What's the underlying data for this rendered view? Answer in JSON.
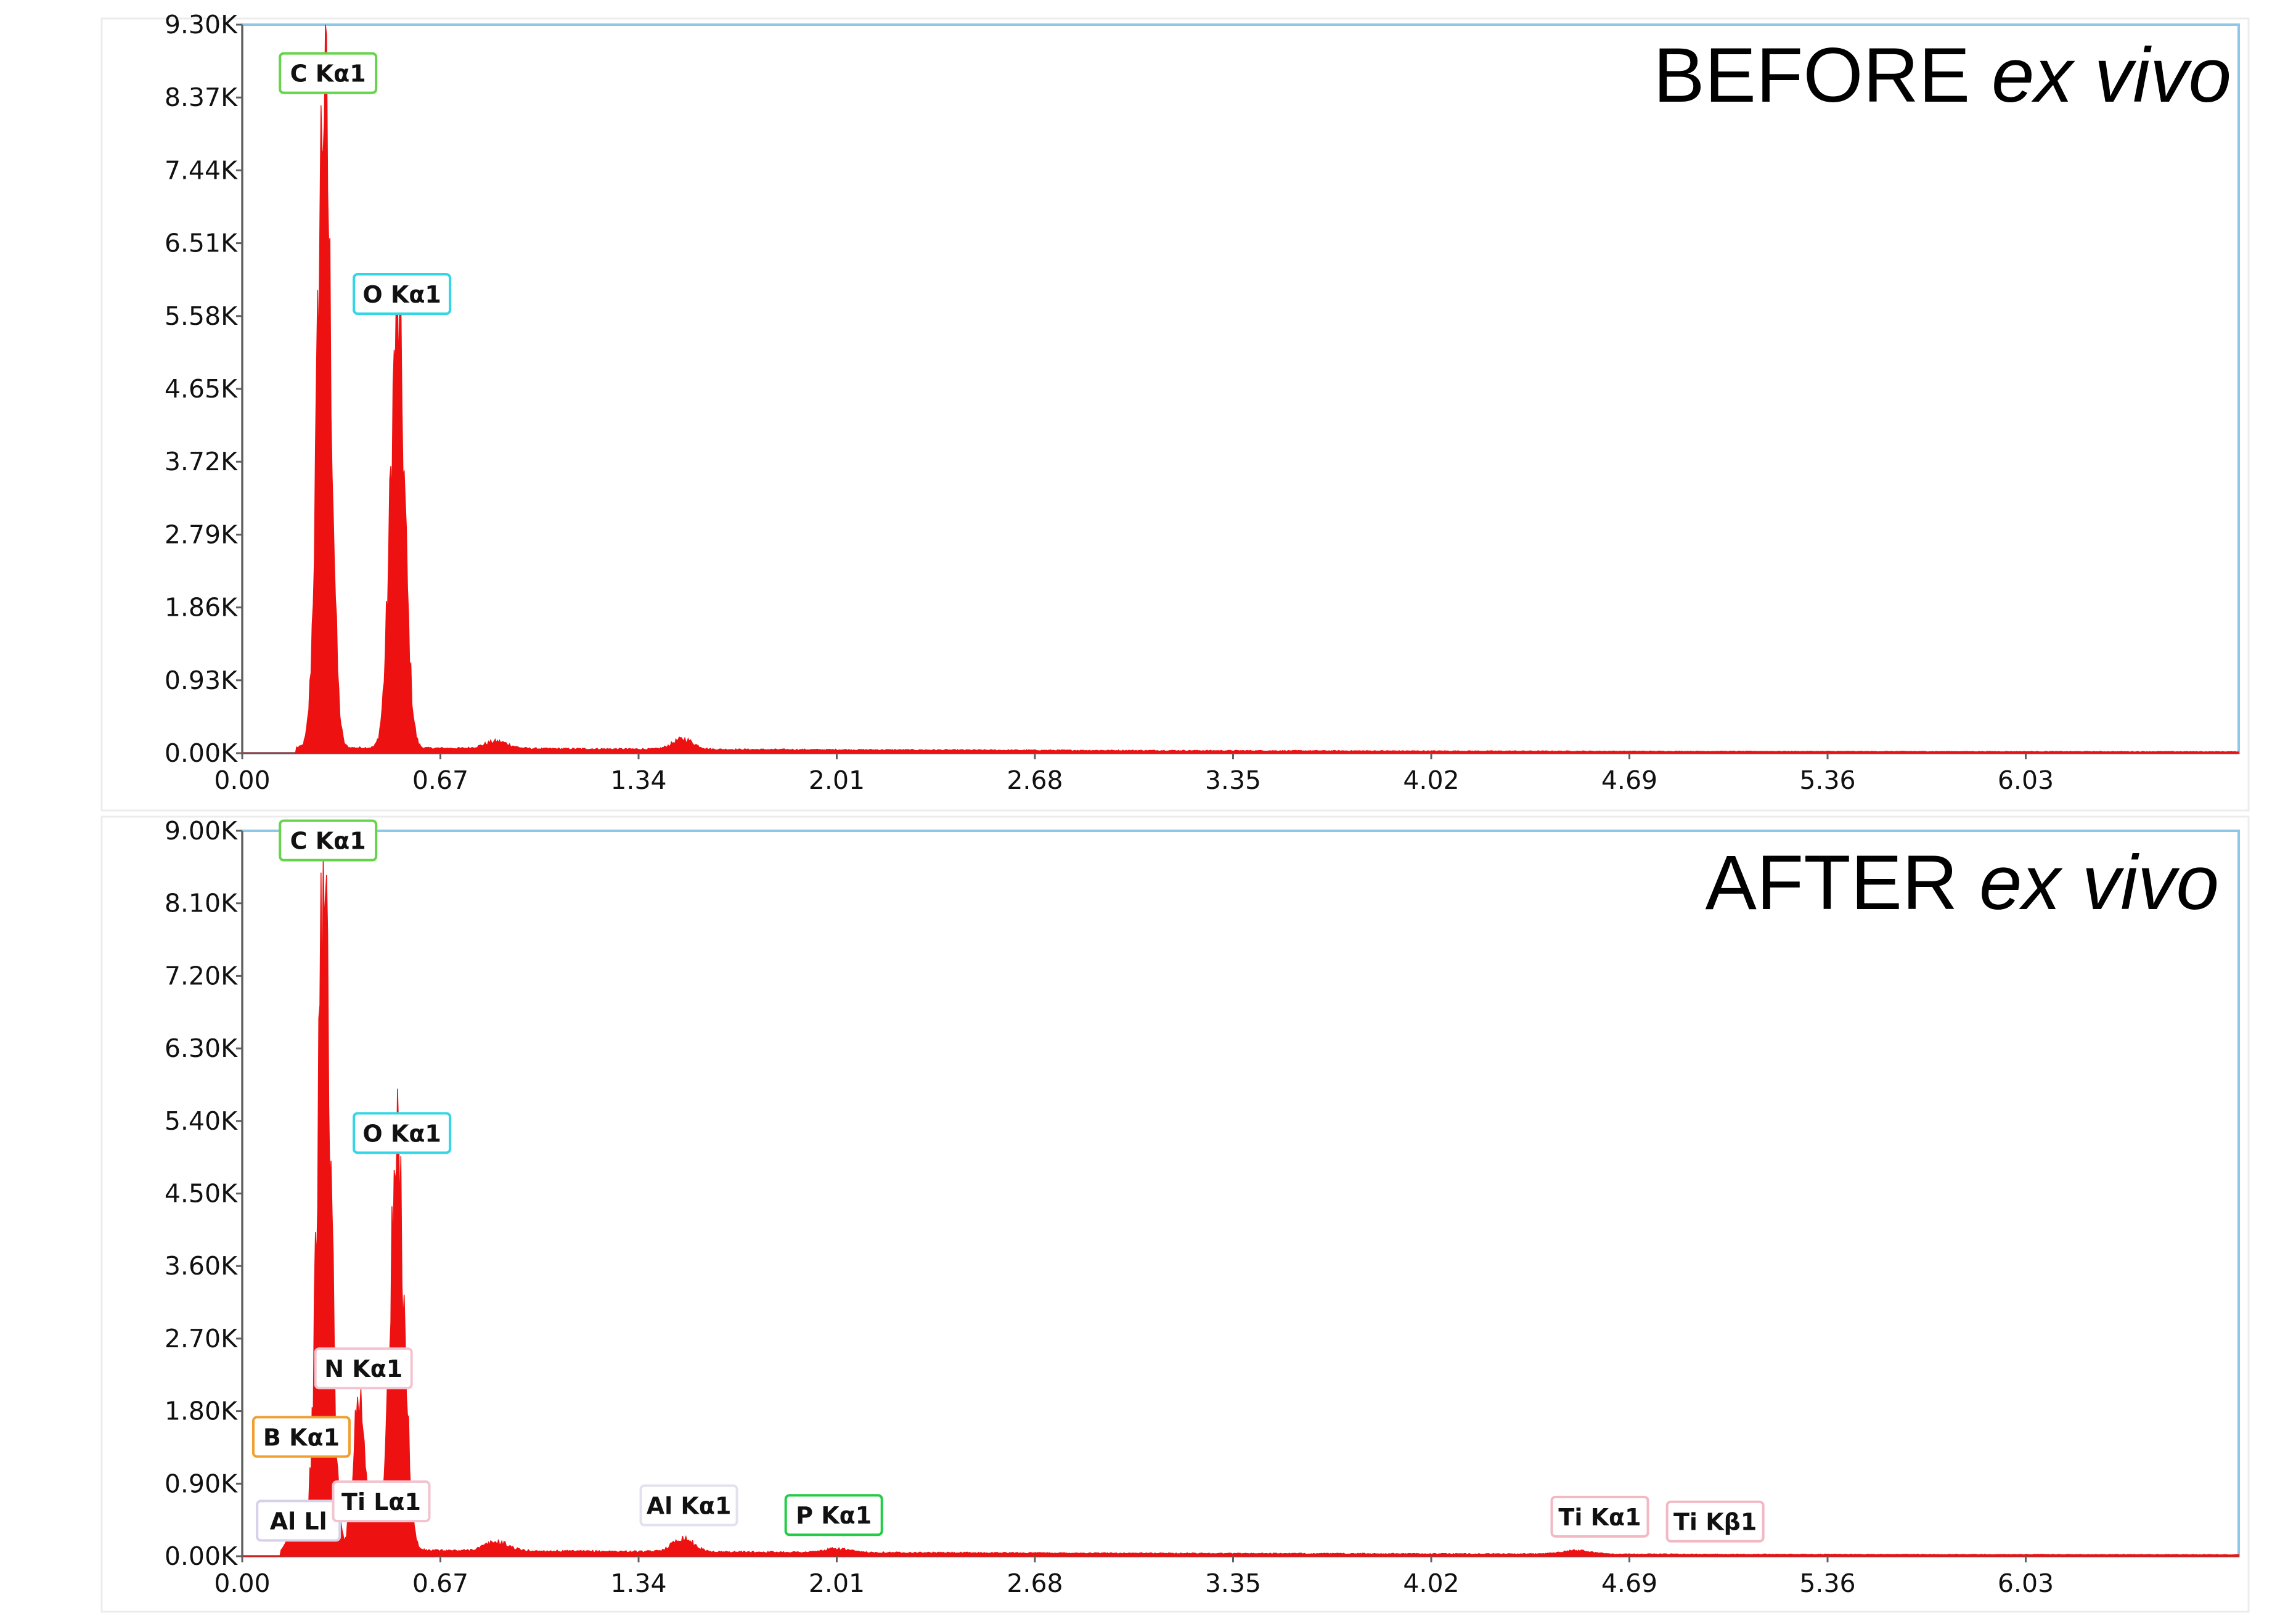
{
  "chart_data": [
    {
      "type": "area",
      "title_main": "BEFORE",
      "title_italic": "ex vivo",
      "xlim": [
        0,
        6.75
      ],
      "ylim": [
        0,
        9300
      ],
      "xticks": [
        "0.00",
        "0.67",
        "1.34",
        "2.01",
        "2.68",
        "3.35",
        "4.02",
        "4.69",
        "5.36",
        "6.03"
      ],
      "xtick_values": [
        0,
        0.67,
        1.34,
        2.01,
        2.68,
        3.35,
        4.02,
        4.69,
        5.36,
        6.03
      ],
      "yticks": [
        "0.00K",
        "0.93K",
        "1.86K",
        "2.79K",
        "3.72K",
        "4.65K",
        "5.58K",
        "6.51K",
        "7.44K",
        "8.37K",
        "9.30K"
      ],
      "ytick_values": [
        0,
        930,
        1860,
        2790,
        3720,
        4650,
        5580,
        6510,
        7440,
        8370,
        9300
      ],
      "peaks": [
        {
          "energy": 0.277,
          "counts": 8450,
          "width": 0.022
        },
        {
          "energy": 0.525,
          "counts": 5350,
          "width": 0.024
        },
        {
          "energy": 0.86,
          "counts": 90,
          "width": 0.04
        },
        {
          "energy": 1.49,
          "counts": 130,
          "width": 0.035
        }
      ],
      "background": {
        "start": 0.18,
        "level": 60,
        "decay": 0.45
      },
      "peak_labels": [
        {
          "text": "C  Kα1",
          "energy": 0.29,
          "counts": 8650,
          "color": "#66d44a"
        },
        {
          "text": "O  Kα1",
          "energy": 0.54,
          "counts": 5830,
          "color": "#33d6e6"
        }
      ]
    },
    {
      "type": "area",
      "title_main": "AFTER",
      "title_italic": "ex vivo",
      "xlim": [
        0,
        6.75
      ],
      "ylim": [
        0,
        9000
      ],
      "xticks": [
        "0.00",
        "0.67",
        "1.34",
        "2.01",
        "2.68",
        "3.35",
        "4.02",
        "4.69",
        "5.36",
        "6.03"
      ],
      "xtick_values": [
        0,
        0.67,
        1.34,
        2.01,
        2.68,
        3.35,
        4.02,
        4.69,
        5.36,
        6.03
      ],
      "yticks": [
        "0.00K",
        "0.90K",
        "1.80K",
        "2.70K",
        "3.60K",
        "4.50K",
        "5.40K",
        "6.30K",
        "7.20K",
        "8.10K",
        "9.00K"
      ],
      "ytick_values": [
        0,
        900,
        1800,
        2700,
        3600,
        4500,
        5400,
        6300,
        7200,
        8100,
        9000
      ],
      "peaks": [
        {
          "energy": 0.185,
          "counts": 380,
          "width": 0.03
        },
        {
          "energy": 0.277,
          "counts": 8150,
          "width": 0.022
        },
        {
          "energy": 0.395,
          "counts": 1900,
          "width": 0.02
        },
        {
          "energy": 0.455,
          "counts": 500,
          "width": 0.02
        },
        {
          "energy": 0.525,
          "counts": 4800,
          "width": 0.024
        },
        {
          "energy": 0.86,
          "counts": 110,
          "width": 0.04
        },
        {
          "energy": 1.49,
          "counts": 170,
          "width": 0.035
        },
        {
          "energy": 2.01,
          "counts": 45,
          "width": 0.04
        },
        {
          "energy": 4.51,
          "counts": 45,
          "width": 0.05
        }
      ],
      "background": {
        "start": 0.15,
        "level": 70,
        "decay": 0.45
      },
      "peak_labels": [
        {
          "text": "C  Kα1",
          "energy": 0.29,
          "counts": 8850,
          "color": "#66d44a"
        },
        {
          "text": "O  Kα1",
          "energy": 0.54,
          "counts": 5220,
          "color": "#33d6e6"
        },
        {
          "text": "N  Kα1",
          "energy": 0.41,
          "counts": 2300,
          "color": "#f2c4d0"
        },
        {
          "text": "B  Kα1",
          "energy": 0.2,
          "counts": 1450,
          "color": "#f0a030"
        },
        {
          "text": "Al Ll",
          "energy": 0.19,
          "counts": 410,
          "color": "#d8d0e8"
        },
        {
          "text": "Ti Lα1",
          "energy": 0.47,
          "counts": 650,
          "color": "#f2c4d0"
        },
        {
          "text": "Al Kα1",
          "energy": 1.51,
          "counts": 600,
          "color": "#e4e0ee"
        },
        {
          "text": "P  Kα1",
          "energy": 2.0,
          "counts": 480,
          "color": "#22cc44"
        },
        {
          "text": "Ti Kα1",
          "energy": 4.59,
          "counts": 460,
          "color": "#f2b8c4"
        },
        {
          "text": "Ti Kβ1",
          "energy": 4.98,
          "counts": 400,
          "color": "#f2b8c4"
        }
      ]
    }
  ]
}
